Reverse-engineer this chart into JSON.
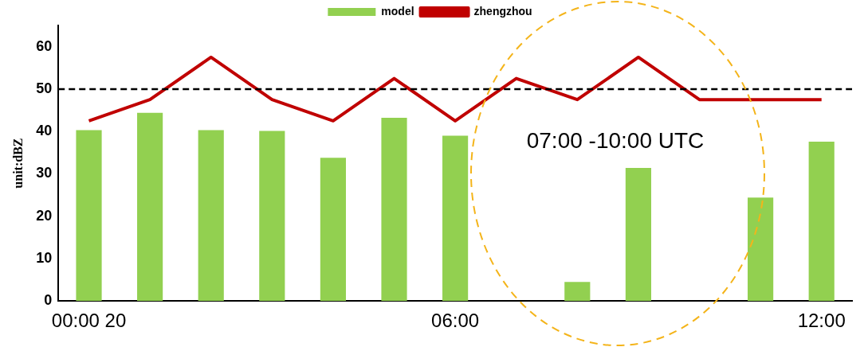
{
  "chart_data": {
    "type": "bar",
    "ylabel": "unit:dBZ",
    "categories": [
      "00:00 20",
      null,
      null,
      null,
      null,
      null,
      "06:00",
      null,
      null,
      null,
      null,
      null,
      "12:00"
    ],
    "series": [
      {
        "name": "model",
        "color": "#92d050",
        "values": [
          40.3,
          44.4,
          40.3,
          40.1,
          33.8,
          43.2,
          39.0,
          null,
          4.5,
          31.4,
          null,
          24.4,
          37.6
        ]
      },
      {
        "name": "zhengzhou",
        "type": "line",
        "color": "#c00000",
        "values": [
          42.5,
          47.5,
          57.5,
          47.5,
          42.5,
          52.5,
          42.5,
          52.5,
          47.5,
          57.5,
          47.5,
          47.5,
          47.5
        ]
      }
    ],
    "ylim": [
      0,
      65
    ],
    "yticks": [
      0,
      10,
      20,
      30,
      40,
      50,
      60
    ],
    "grid": false,
    "legend": "top",
    "marker": "none",
    "ref_lines": [
      {
        "axis": "y",
        "value": 50,
        "color": "#000000",
        "line_style": "dashed"
      }
    ],
    "annotations": [
      "07:00 -10:00 UTC"
    ]
  }
}
